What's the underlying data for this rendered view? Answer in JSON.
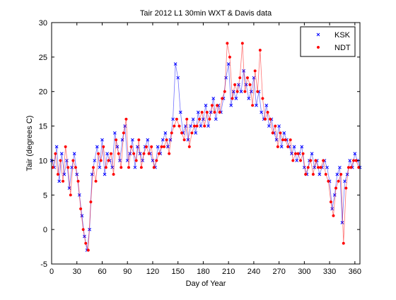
{
  "chart_data": {
    "type": "scatter",
    "title": "Tair 2012 L1 30min WXT & Davis data",
    "xlabel": "Day of Year",
    "ylabel": "Tair (degrees C)",
    "xlim": [
      0,
      366
    ],
    "ylim": [
      -5,
      30
    ],
    "xticks": [
      0,
      30,
      60,
      90,
      120,
      150,
      180,
      210,
      240,
      270,
      300,
      330,
      360
    ],
    "yticks": [
      -5,
      0,
      5,
      10,
      15,
      20,
      25,
      30
    ],
    "grid": false,
    "legend": "top-right",
    "series": [
      {
        "name": "KSK",
        "color": "#0000ff",
        "marker": "x",
        "x": [
          0,
          3,
          6,
          9,
          12,
          15,
          18,
          21,
          24,
          27,
          30,
          33,
          36,
          39,
          42,
          45,
          48,
          51,
          54,
          57,
          60,
          63,
          66,
          69,
          72,
          75,
          78,
          81,
          84,
          87,
          90,
          93,
          96,
          99,
          102,
          105,
          108,
          111,
          114,
          117,
          120,
          123,
          126,
          129,
          132,
          135,
          138,
          141,
          144,
          147,
          150,
          153,
          156,
          159,
          162,
          165,
          168,
          171,
          174,
          177,
          180,
          183,
          186,
          189,
          192,
          195,
          198,
          201,
          204,
          207,
          210,
          213,
          216,
          219,
          222,
          225,
          228,
          231,
          234,
          237,
          240,
          243,
          246,
          249,
          252,
          255,
          258,
          261,
          264,
          267,
          270,
          273,
          276,
          279,
          282,
          285,
          288,
          291,
          294,
          297,
          300,
          303,
          306,
          309,
          312,
          315,
          318,
          321,
          324,
          327,
          330,
          333,
          336,
          339,
          342,
          345,
          348,
          351,
          354,
          357,
          360,
          363,
          366
        ],
        "y": [
          10,
          9,
          12,
          7,
          11,
          8,
          10,
          6,
          9,
          11,
          8,
          5,
          2,
          -1,
          -3,
          0,
          8,
          10,
          12,
          9,
          13,
          8,
          11,
          10,
          9,
          14,
          12,
          10,
          13,
          15,
          10,
          11,
          13,
          9,
          12,
          11,
          10,
          12,
          13,
          11,
          10,
          9,
          12,
          11,
          13,
          14,
          12,
          13,
          16,
          24,
          22,
          17,
          14,
          15,
          13,
          15,
          16,
          14,
          17,
          15,
          16,
          18,
          15,
          17,
          19,
          16,
          18,
          17,
          19,
          22,
          24,
          18,
          20,
          19,
          21,
          20,
          23,
          21,
          19,
          20,
          22,
          18,
          20,
          17,
          16,
          18,
          15,
          16,
          14,
          13,
          15,
          12,
          14,
          13,
          12,
          11,
          12,
          10,
          11,
          12,
          9,
          8,
          10,
          11,
          9,
          10,
          8,
          9,
          10,
          9,
          7,
          3,
          5,
          8,
          9,
          1,
          7,
          8,
          10,
          9,
          11,
          10,
          9
        ]
      },
      {
        "name": "NDT",
        "color": "#ff0000",
        "marker": ".",
        "x": [
          1.5,
          4.5,
          7.5,
          10.5,
          13.5,
          16.5,
          19.5,
          22.5,
          25.5,
          28.5,
          31.5,
          34.5,
          37.5,
          40.5,
          43.5,
          46.5,
          49.5,
          52.5,
          55.5,
          58.5,
          61.5,
          64.5,
          67.5,
          70.5,
          73.5,
          76.5,
          79.5,
          82.5,
          85.5,
          88.5,
          91.5,
          94.5,
          97.5,
          100.5,
          103.5,
          106.5,
          109.5,
          112.5,
          115.5,
          118.5,
          121.5,
          124.5,
          127.5,
          130.5,
          133.5,
          136.5,
          139.5,
          142.5,
          145.5,
          148.5,
          151.5,
          154.5,
          157.5,
          160.5,
          163.5,
          166.5,
          169.5,
          172.5,
          175.5,
          178.5,
          181.5,
          184.5,
          187.5,
          190.5,
          193.5,
          196.5,
          199.5,
          202.5,
          205.5,
          208.5,
          211.5,
          214.5,
          217.5,
          220.5,
          223.5,
          226.5,
          229.5,
          232.5,
          235.5,
          238.5,
          241.5,
          244.5,
          247.5,
          250.5,
          253.5,
          256.5,
          259.5,
          262.5,
          265.5,
          268.5,
          271.5,
          274.5,
          277.5,
          280.5,
          283.5,
          286.5,
          289.5,
          292.5,
          295.5,
          298.5,
          301.5,
          304.5,
          307.5,
          310.5,
          313.5,
          316.5,
          319.5,
          322.5,
          325.5,
          328.5,
          331.5,
          334.5,
          337.5,
          340.5,
          343.5,
          346.5,
          349.5,
          352.5,
          355.5,
          358.5,
          361.5,
          364.5
        ],
        "y": [
          9,
          11,
          8,
          10,
          7,
          12,
          9,
          5,
          10,
          9,
          7,
          3,
          0,
          -2,
          -3,
          4,
          9,
          7,
          11,
          10,
          12,
          9,
          10,
          11,
          8,
          13,
          11,
          9,
          14,
          16,
          9,
          12,
          11,
          10,
          13,
          9,
          11,
          12,
          11,
          12,
          9,
          10,
          11,
          12,
          12,
          13,
          11,
          14,
          15,
          16,
          15,
          14,
          13,
          16,
          12,
          14,
          15,
          15,
          16,
          17,
          15,
          17,
          16,
          18,
          17,
          18,
          17,
          19,
          20,
          27,
          25,
          19,
          21,
          20,
          22,
          27,
          20,
          22,
          21,
          18,
          23,
          20,
          26,
          19,
          16,
          17,
          16,
          14,
          15,
          12,
          14,
          13,
          13,
          12,
          13,
          10,
          11,
          11,
          10,
          11,
          8,
          9,
          10,
          8,
          10,
          9,
          9,
          10,
          8,
          7,
          4,
          2,
          6,
          7,
          8,
          -2,
          6,
          9,
          9,
          10,
          10,
          9
        ]
      }
    ]
  }
}
